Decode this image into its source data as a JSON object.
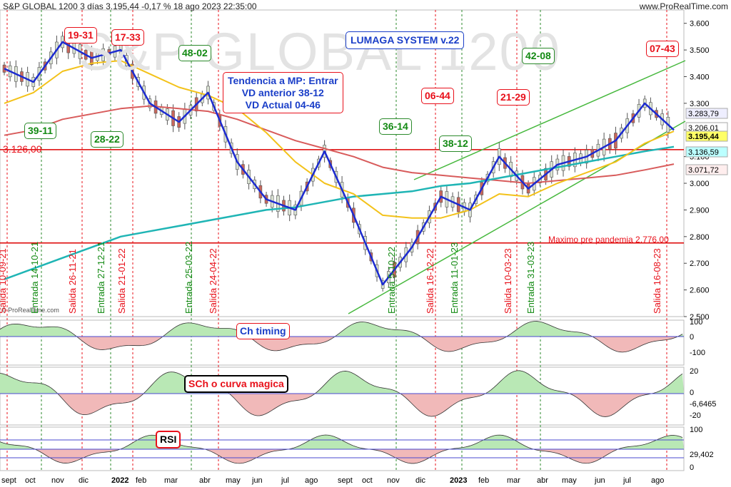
{
  "header": {
    "title": "S&P GLOBAL 1200 3 días 3.195,44 -0,17 % 18 ago 2023 22:35:00",
    "site": "www.ProRealTime.com",
    "watermark": "S&P GLOBAL 1200",
    "copyright": "© ProRealTime.com"
  },
  "annotations": {
    "system": "LUMAGA SYSTEM v.22",
    "trend_line1": "Tendencia a MP: Entrar",
    "trend_line2": "VD anterior 38-12",
    "trend_line3": "VD Actual 04-46",
    "premax": "Maximo pre pandemia  2.776,00",
    "level_3126": "3.126,00",
    "scores": [
      "19-31",
      "17-33",
      "48-02",
      "39-11",
      "28-22",
      "36-14",
      "06-44",
      "38-12",
      "21-29",
      "42-08",
      "07-43"
    ],
    "signals": [
      "Salida 10-09-21",
      "Entrada 14-10-21",
      "Salida 26-11-21",
      "Entrada 27-12-21",
      "Salida 21-01-22",
      "Entrada 25-03-22",
      "Salida 24-04-22",
      "Entrada 5-10-22",
      "Salida 16-12-22",
      "Entrada 11-01-23",
      "Salida 10-03-23",
      "Entrada 31-03-23",
      "Salida 16-08-23"
    ],
    "panel_labels": [
      "Ch timing",
      "SCh o curva magica",
      "RSI"
    ]
  },
  "axes": {
    "price_ticks": [
      "3.600",
      "3.500",
      "3.400",
      "3.300",
      "3.200",
      "3.100",
      "3.000",
      "2.900",
      "2.800",
      "2.700",
      "2.600",
      "2.500"
    ],
    "price_tags": [
      "3.283,79",
      "3.206,01",
      "3.195,44",
      "3.136,59",
      "3.071,72"
    ],
    "ch_ticks": [
      "100",
      "0",
      "-100"
    ],
    "sch_ticks": [
      "20",
      "0",
      "-6,6465",
      "-20"
    ],
    "rsi_ticks": [
      "100",
      "29,402",
      "0"
    ],
    "months": [
      "sept",
      "oct",
      "nov",
      "dic",
      "2022",
      "feb",
      "mar",
      "abr",
      "may",
      "jun",
      "jul",
      "ago",
      "sept",
      "oct",
      "nov",
      "dic",
      "2023",
      "feb",
      "mar",
      "abr",
      "may",
      "jun",
      "jul",
      "ago"
    ]
  },
  "colors": {
    "up": "#d9e1d2",
    "ma_blue": "#1c2bd0",
    "ma_yellow": "#f3c21a",
    "ma_red": "#d85b5b",
    "ma_cyan": "#1fb5b5",
    "trend_green": "#46b83d"
  },
  "chart_data": {
    "type": "line",
    "title": "S&P GLOBAL 1200 3 días",
    "ylim": [
      2500,
      3650
    ],
    "x": [
      "2021-09",
      "2021-10",
      "2021-11",
      "2021-12",
      "2022-01",
      "2022-02",
      "2022-03",
      "2022-04",
      "2022-05",
      "2022-06",
      "2022-07",
      "2022-08",
      "2022-09",
      "2022-10",
      "2022-11",
      "2022-12",
      "2023-01",
      "2023-02",
      "2023-03",
      "2023-04",
      "2023-05",
      "2023-06",
      "2023-07",
      "2023-08"
    ],
    "series": [
      {
        "values": [
          3430,
          3380,
          3530,
          3470,
          3500,
          3300,
          3230,
          3340,
          3080,
          2940,
          2900,
          3120,
          2880,
          2620,
          2760,
          2950,
          2900,
          3100,
          2980,
          3070,
          3100,
          3160,
          3300,
          3200
        ]
      },
      {
        "values": [
          3300,
          3340,
          3420,
          3450,
          3460,
          3410,
          3360,
          3330,
          3280,
          3190,
          3080,
          3000,
          2960,
          2880,
          2870,
          2870,
          2900,
          2960,
          2950,
          3000,
          3040,
          3080,
          3150,
          3195
        ]
      },
      {
        "values": [
          3180,
          3200,
          3240,
          3260,
          3280,
          3290,
          3280,
          3270,
          3240,
          3200,
          3160,
          3130,
          3100,
          3060,
          3040,
          3030,
          3020,
          3010,
          3000,
          3010,
          3020,
          3030,
          3050,
          3072
        ]
      },
      {
        "values": [
          2640,
          2680,
          2720,
          2760,
          2800,
          2820,
          2840,
          2860,
          2880,
          2900,
          2910,
          2930,
          2950,
          2960,
          2970,
          2990,
          3000,
          3020,
          3040,
          3060,
          3080,
          3100,
          3120,
          3137
        ]
      }
    ]
  }
}
